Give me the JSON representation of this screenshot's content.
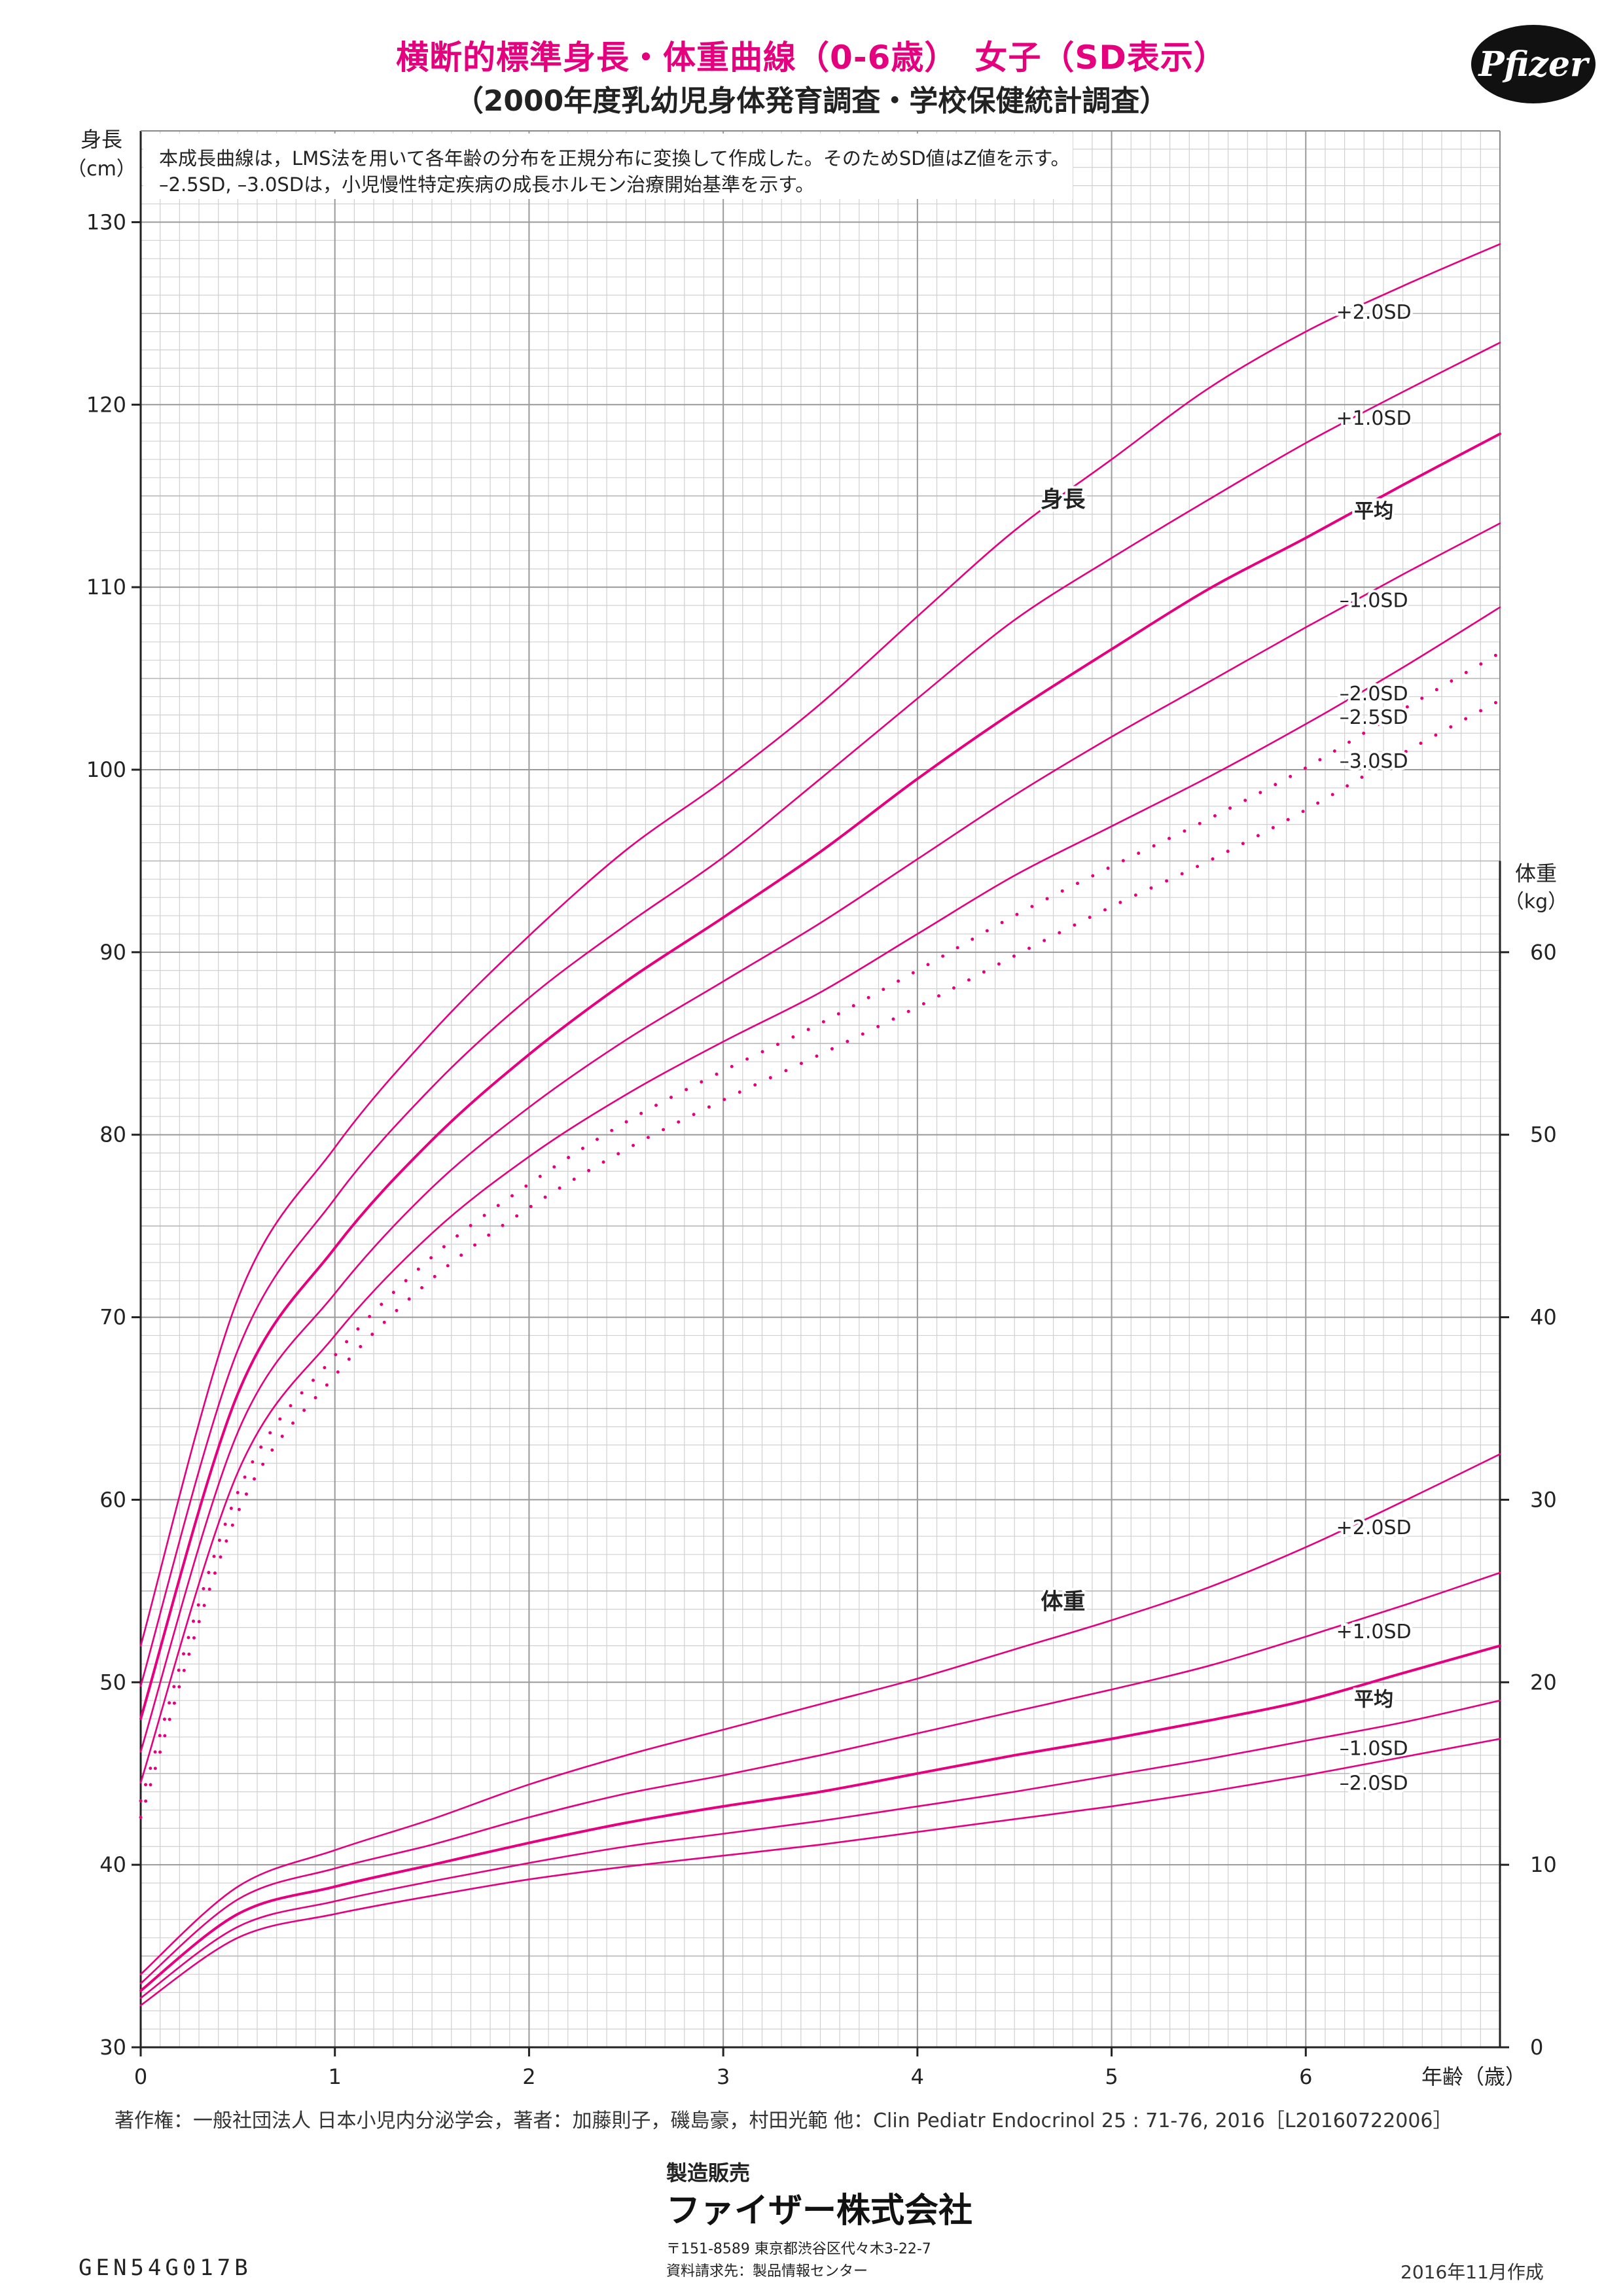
{
  "header": {
    "title": "横断的標準身長・体重曲線（0-6歳）　女子（SD表示）",
    "subtitle": "（2000年度乳幼児身体発育調査・学校保健統計調査）",
    "logo": "Pfizer"
  },
  "note": {
    "line1": "本成長曲線は，LMS法を用いて各年齢の分布を正規分布に変換して作成した。そのためSD値はZ値を示す。",
    "line2": "–2.5SD, –3.0SDは，小児慢性特定疾病の成長ホルモン治療開始基準を示す。"
  },
  "footer": {
    "copyright": "著作権：一般社団法人 日本小児内分泌学会，著者：加藤則子，磯島豪，村田光範 他：Clin Pediatr Endocrinol 25 : 71-76, 2016［L20160722006］",
    "maker_label": "製造販売",
    "maker_name": "ファイザー株式会社",
    "address": "〒151-8589  東京都渋谷区代々木3-22-7",
    "inquiry": "資料請求先：製品情報センター",
    "code": "GEN54G017B",
    "date": "2016年11月作成"
  },
  "colors": {
    "curve": "#e5007e",
    "grid_major": "#9a9a9a",
    "grid_minor": "#d0d0d0",
    "text": "#222222"
  },
  "chart_data": {
    "type": "line",
    "x_label": "年齢（歳）",
    "x_ticks": [
      "0",
      "1",
      "2",
      "3",
      "4",
      "5",
      "6"
    ],
    "xlim": [
      0,
      7
    ],
    "left_axis": {
      "label_line1": "身長",
      "label_line2": "（cm）",
      "ylim": [
        30,
        135
      ],
      "ticks": [
        30,
        40,
        50,
        60,
        70,
        80,
        90,
        100,
        110,
        120,
        130
      ]
    },
    "right_axis": {
      "label_line1": "体重",
      "label_line2": "（kg）",
      "ylim": [
        0,
        60
      ],
      "ticks": [
        0,
        10,
        20,
        30,
        40,
        50,
        60
      ]
    },
    "x": [
      0,
      0.5,
      1,
      1.5,
      2,
      2.5,
      3,
      3.5,
      4,
      4.5,
      5,
      5.5,
      6,
      6.5,
      7
    ],
    "height_label": "身長",
    "weight_label": "体重",
    "height_series": [
      {
        "name": "+2.0SD",
        "style": "solid",
        "values": [
          52.0,
          71.0,
          79.3,
          85.6,
          90.9,
          95.6,
          99.4,
          103.6,
          108.4,
          113.1,
          117.0,
          120.9,
          124.0,
          126.5,
          128.8
        ]
      },
      {
        "name": "+1.0SD",
        "style": "solid",
        "values": [
          49.8,
          68.2,
          76.5,
          82.6,
          87.5,
          91.5,
          95.2,
          99.5,
          103.9,
          108.2,
          111.6,
          114.8,
          117.9,
          120.7,
          123.4
        ]
      },
      {
        "name": "平均",
        "style": "solid",
        "values": [
          48.0,
          65.8,
          73.8,
          79.7,
          84.4,
          88.4,
          91.9,
          95.5,
          99.5,
          103.2,
          106.6,
          109.9,
          112.7,
          115.6,
          118.4
        ]
      },
      {
        "name": "–1.0SD",
        "style": "solid",
        "values": [
          46.2,
          63.7,
          71.3,
          77.1,
          81.5,
          85.2,
          88.4,
          91.6,
          95.1,
          98.6,
          101.8,
          104.8,
          107.8,
          110.7,
          113.5
        ]
      },
      {
        "name": "–2.0SD",
        "style": "solid",
        "values": [
          44.5,
          61.5,
          69.0,
          74.6,
          78.8,
          82.2,
          85.1,
          87.8,
          91.0,
          94.2,
          96.9,
          99.6,
          102.5,
          105.6,
          108.9
        ]
      },
      {
        "name": "–2.5SD",
        "style": "dotted",
        "values": [
          43.5,
          60.4,
          67.9,
          73.3,
          77.3,
          80.7,
          83.5,
          86.1,
          89.0,
          92.0,
          94.7,
          97.3,
          100.1,
          103.3,
          106.4
        ]
      },
      {
        "name": "–3.0SD",
        "style": "dotted",
        "values": [
          42.6,
          59.3,
          66.8,
          72.1,
          76.0,
          79.2,
          81.9,
          84.4,
          87.0,
          89.8,
          92.5,
          95.0,
          97.8,
          100.9,
          103.8
        ]
      }
    ],
    "weight_series": [
      {
        "name": "+2.0SD",
        "values": [
          4.0,
          8.8,
          10.8,
          12.5,
          14.4,
          16.0,
          17.4,
          18.8,
          20.2,
          21.8,
          23.4,
          25.2,
          27.4,
          29.9,
          32.5
        ]
      },
      {
        "name": "+1.0SD",
        "values": [
          3.5,
          8.1,
          9.8,
          11.1,
          12.6,
          13.9,
          14.9,
          16.0,
          17.2,
          18.4,
          19.6,
          20.9,
          22.5,
          24.2,
          26.0
        ]
      },
      {
        "name": "平均",
        "values": [
          3.1,
          7.3,
          8.8,
          10.0,
          11.2,
          12.3,
          13.2,
          14.0,
          15.0,
          16.0,
          16.9,
          17.9,
          19.0,
          20.5,
          22.0
        ]
      },
      {
        "name": "–1.0SD",
        "values": [
          2.7,
          6.6,
          8.0,
          9.1,
          10.1,
          11.0,
          11.7,
          12.4,
          13.2,
          14.0,
          14.9,
          15.8,
          16.8,
          17.8,
          19.0
        ]
      },
      {
        "name": "–2.0SD",
        "values": [
          2.3,
          6.0,
          7.3,
          8.3,
          9.2,
          9.9,
          10.5,
          11.1,
          11.8,
          12.5,
          13.2,
          14.0,
          14.9,
          15.9,
          16.9
        ]
      }
    ]
  }
}
